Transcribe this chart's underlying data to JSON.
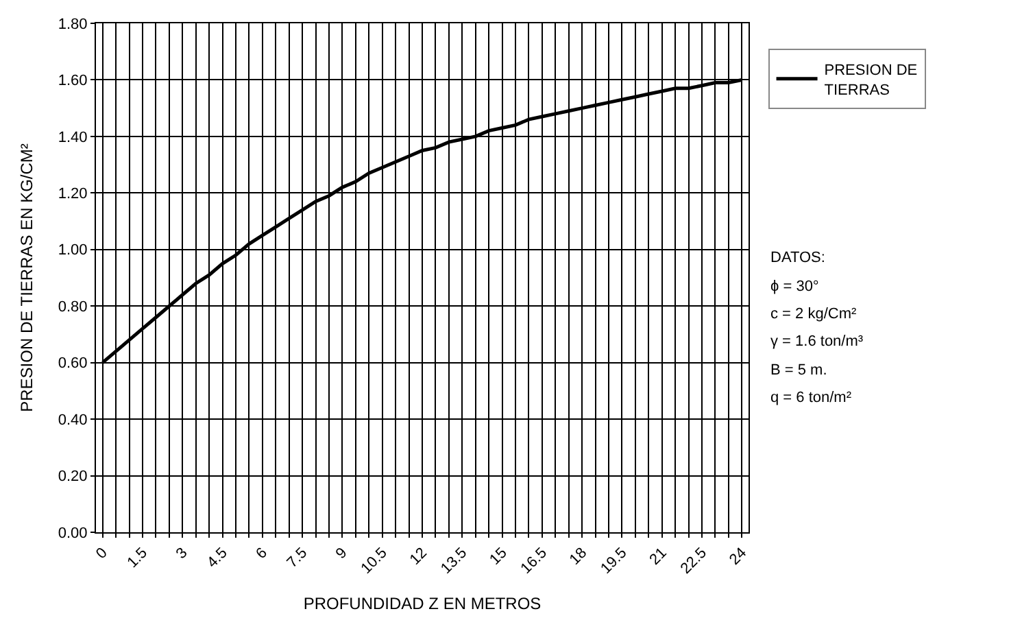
{
  "chart_data": {
    "type": "line",
    "xlabel": "PROFUNDIDAD Z EN METROS",
    "ylabel": "PRESION DE TIERRAS EN KG/CM²",
    "categories": [
      "0",
      null,
      null,
      "1.5",
      null,
      null,
      "3",
      null,
      null,
      "4.5",
      null,
      null,
      "6",
      null,
      null,
      "7.5",
      null,
      null,
      "9",
      null,
      null,
      "10.5",
      null,
      null,
      "12",
      null,
      null,
      "13.5",
      null,
      null,
      "15",
      null,
      null,
      "16.5",
      null,
      null,
      "18",
      null,
      null,
      "19.5",
      null,
      null,
      "21",
      null,
      null,
      "22.5",
      null,
      null,
      "24"
    ],
    "series": [
      {
        "name": "PRESION DE TIERRAS",
        "color": "#000000",
        "values": [
          0.6,
          0.64,
          0.68,
          0.72,
          0.76,
          0.8,
          0.84,
          0.88,
          0.91,
          0.95,
          0.98,
          1.02,
          1.05,
          1.08,
          1.11,
          1.14,
          1.17,
          1.19,
          1.22,
          1.24,
          1.27,
          1.29,
          1.31,
          1.33,
          1.35,
          1.36,
          1.38,
          1.39,
          1.4,
          1.42,
          1.43,
          1.44,
          1.46,
          1.47,
          1.48,
          1.49,
          1.5,
          1.51,
          1.52,
          1.53,
          1.54,
          1.55,
          1.56,
          1.57,
          1.57,
          1.58,
          1.59,
          1.59,
          1.6
        ]
      }
    ],
    "ylim": [
      0,
      1.8
    ],
    "yticks": [
      {
        "value": 0,
        "label": "0.00"
      },
      {
        "value": 0.2,
        "label": "0.20"
      },
      {
        "value": 0.4,
        "label": "0.40"
      },
      {
        "value": 0.6,
        "label": "0.60"
      },
      {
        "value": 0.8,
        "label": "0.80"
      },
      {
        "value": 1.0,
        "label": "1.00"
      },
      {
        "value": 1.2,
        "label": "1.20"
      },
      {
        "value": 1.4,
        "label": "1.40"
      },
      {
        "value": 1.6,
        "label": "1.60"
      },
      {
        "value": 1.8,
        "label": "1.80"
      }
    ],
    "grid": true,
    "legend": "top right",
    "line_style": "solid",
    "annotations": [
      "DATOS:",
      "ϕ = 30°",
      "c = 2 kg/Cm²",
      "γ = 1.6 ton/m³",
      "B = 5 m.",
      "q = 6 ton/m²"
    ]
  }
}
